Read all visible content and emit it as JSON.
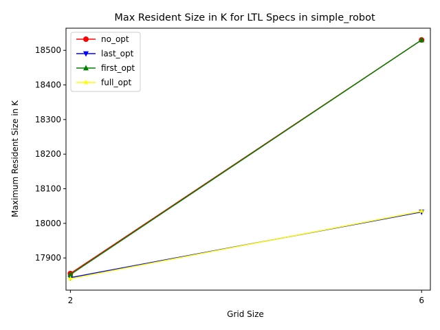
{
  "chart_data": {
    "type": "line",
    "title": "Max Resident Size in K for LTL Specs in simple_robot",
    "xlabel": "Grid Size",
    "ylabel": "Maximum Resident Size in K",
    "x": [
      2,
      6
    ],
    "xticks": [
      2,
      6
    ],
    "yticks": [
      17900,
      18000,
      18100,
      18200,
      18300,
      18400,
      18500
    ],
    "xlim": [
      1.95,
      6.1
    ],
    "ylim": [
      17807,
      18564
    ],
    "grid": false,
    "legend_position": "top-left",
    "series": [
      {
        "name": "no_opt",
        "values": [
          17855,
          18530
        ],
        "color": "#ff0000",
        "marker": "circle"
      },
      {
        "name": "last_opt",
        "values": [
          17843,
          18033
        ],
        "color": "#0000ff",
        "marker": "triangle-down"
      },
      {
        "name": "first_opt",
        "values": [
          17852,
          18530
        ],
        "color": "#008000",
        "marker": "triangle-up"
      },
      {
        "name": "full_opt",
        "values": [
          17840,
          18035
        ],
        "color": "#ffff00",
        "marker": "star"
      }
    ]
  }
}
